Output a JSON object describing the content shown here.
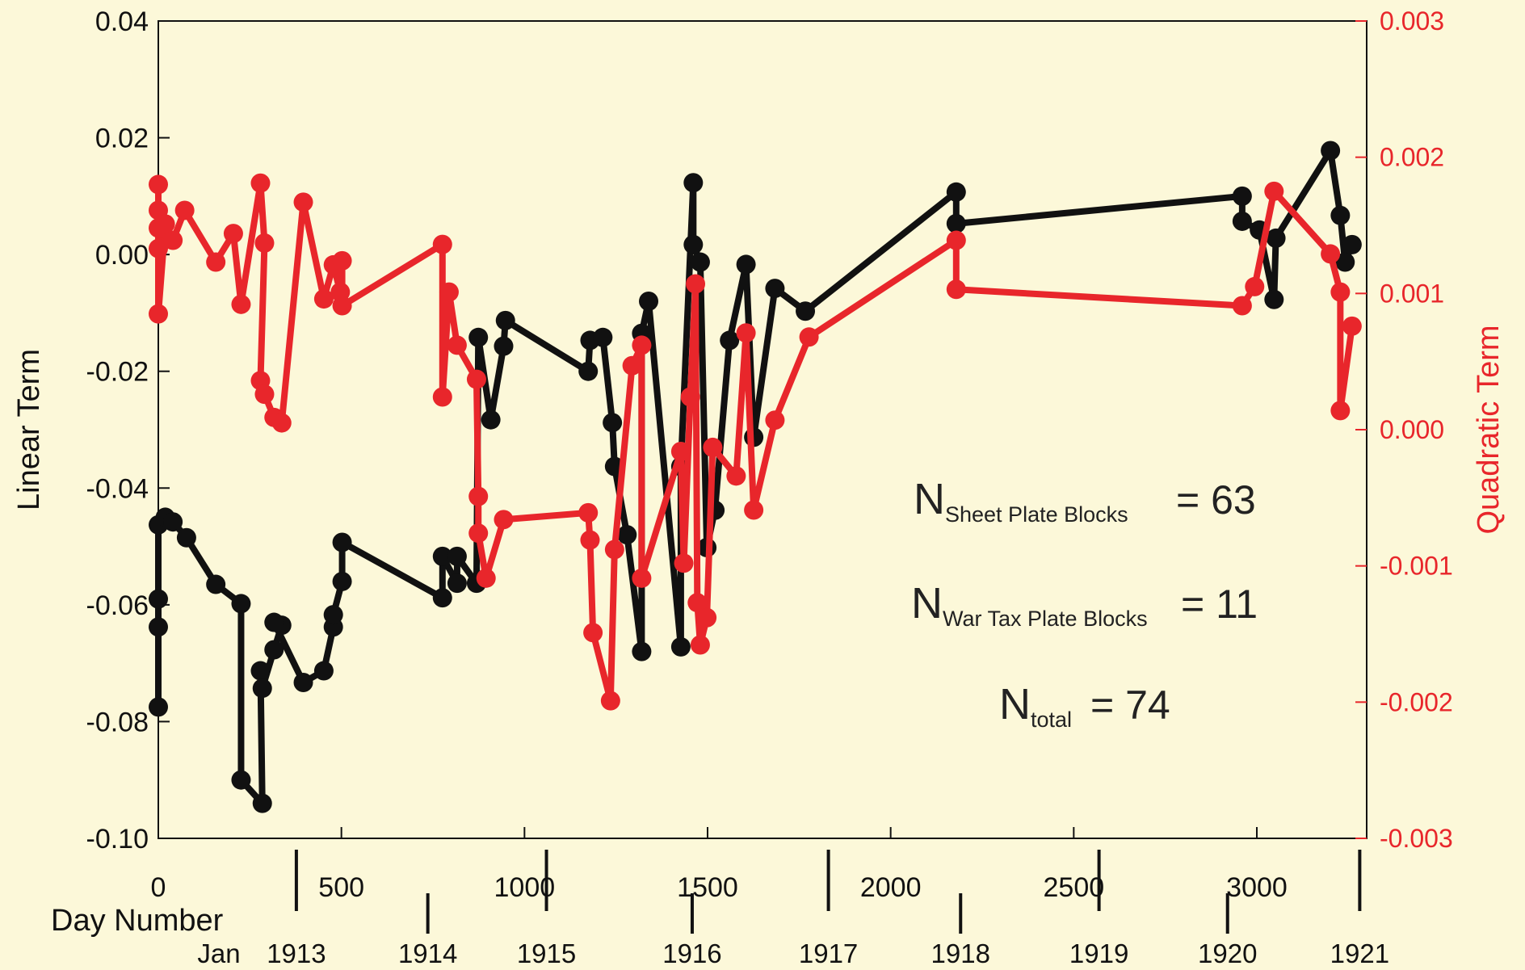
{
  "chart_data": {
    "type": "line",
    "ylabel": "Linear Term",
    "y2label": "Quadratic Term",
    "xlabel": "Day Number",
    "x2label": "Jan",
    "xlim": [
      0,
      3300
    ],
    "xticks": [
      0,
      500,
      1000,
      1500,
      2000,
      2500,
      3000
    ],
    "x2ticks": [
      {
        "value": 377,
        "label": "1913"
      },
      {
        "value": 736,
        "label": "1914"
      },
      {
        "value": 1060,
        "label": "1915"
      },
      {
        "value": 1458,
        "label": "1916"
      },
      {
        "value": 1830,
        "label": "1917"
      },
      {
        "value": 2191,
        "label": "1918"
      },
      {
        "value": 2569,
        "label": "1919"
      },
      {
        "value": 2920,
        "label": "1920"
      },
      {
        "value": 3281,
        "label": "1921"
      }
    ],
    "ylim": [
      -0.1,
      0.04
    ],
    "yticks": [
      0.04,
      0.02,
      {
        "value": 0,
        "label": "0.00"
      },
      -0.02,
      -0.04,
      -0.06,
      -0.08,
      {
        "value": -0.1,
        "label": "-0.10"
      }
    ],
    "y2lim": [
      -0.003,
      0.003
    ],
    "y2ticks": [
      0.003,
      0.002,
      0.001,
      {
        "value": 0,
        "label": "0.000"
      },
      -0.001,
      -0.002,
      -0.003
    ],
    "series": [
      {
        "color": "#111111",
        "axis": "y",
        "x": [
          0,
          0,
          0,
          0,
          19,
          40,
          77,
          157,
          226,
          226,
          284,
          279,
          284,
          316,
          337,
          316,
          396,
          452,
          478,
          478,
          502,
          502,
          776,
          776,
          816,
          816,
          869,
          874,
          908,
          943,
          948,
          1174,
          1179,
          1214,
          1240,
          1246,
          1280,
          1320,
          1320,
          1339,
          1427,
          1427,
          1461,
          1461,
          1480,
          1498,
          1520,
          1560,
          1605,
          1626,
          1684,
          1767,
          2179,
          2179,
          2960,
          2960,
          3007,
          3047,
          3052,
          3201,
          3228,
          3241,
          3260
        ],
        "values": [
          -0.0775,
          -0.0638,
          -0.059,
          -0.0463,
          -0.045,
          -0.0458,
          -0.0485,
          -0.0565,
          -0.0598,
          -0.09,
          -0.094,
          -0.0713,
          -0.0743,
          -0.0677,
          -0.0635,
          -0.063,
          -0.0733,
          -0.0713,
          -0.0638,
          -0.0617,
          -0.056,
          -0.0493,
          -0.0588,
          -0.0517,
          -0.0563,
          -0.0517,
          -0.0563,
          -0.0142,
          -0.0283,
          -0.0157,
          -0.0113,
          -0.02,
          -0.0147,
          -0.0142,
          -0.0288,
          -0.0363,
          -0.048,
          -0.068,
          -0.0135,
          -0.008,
          -0.0672,
          -0.0363,
          0.0123,
          0.0017,
          -0.0013,
          -0.0502,
          -0.0438,
          -0.0147,
          -0.0017,
          -0.0313,
          -0.0058,
          -0.0097,
          0.0107,
          0.0053,
          0.01,
          0.0057,
          0.0042,
          -0.0077,
          0.0028,
          0.0178,
          0.0067,
          -0.0013,
          0.0017
        ]
      },
      {
        "color": "#e8262b",
        "axis": "y2",
        "x": [
          0,
          0,
          0,
          0,
          0,
          19,
          40,
          72,
          157,
          205,
          226,
          279,
          290,
          279,
          290,
          316,
          337,
          396,
          452,
          478,
          497,
          502,
          502,
          776,
          776,
          794,
          816,
          869,
          874,
          874,
          895,
          943,
          1174,
          1179,
          1187,
          1235,
          1246,
          1294,
          1320,
          1320,
          1427,
          1435,
          1453,
          1467,
          1472,
          1480,
          1498,
          1514,
          1578,
          1605,
          1626,
          1684,
          1777,
          2179,
          2179,
          2960,
          2994,
          3047,
          3201,
          3228,
          3228,
          3260
        ],
        "values": [
          0.0018,
          0.00161,
          0.00148,
          0.00133,
          0.00085,
          0.00151,
          0.00139,
          0.00161,
          0.00123,
          0.00144,
          0.00092,
          0.00181,
          0.00137,
          0.00036,
          0.00026,
          9e-05,
          5e-05,
          0.00167,
          0.00096,
          0.00121,
          0.00101,
          0.00124,
          0.00091,
          0.00136,
          0.00024,
          0.00101,
          0.00062,
          0.00037,
          -0.00049,
          -0.00076,
          -0.00109,
          -0.00066,
          -0.00061,
          -0.00081,
          -0.00149,
          -0.00199,
          -0.00088,
          0.00047,
          0.00062,
          -0.00109,
          -0.00016,
          -0.00098,
          0.00024,
          0.00107,
          -0.00127,
          -0.00158,
          -0.00138,
          -0.00013,
          -0.00034,
          0.00071,
          -0.00059,
          7e-05,
          0.00068,
          0.00139,
          0.00103,
          0.00091,
          0.00105,
          0.00175,
          0.00129,
          0.00101,
          0.00014,
          0.00076
        ]
      }
    ],
    "annotations": [
      {
        "main": "N",
        "sub": "Sheet Plate Blocks",
        "rest": "= 63"
      },
      {
        "main": "N",
        "sub": "War Tax Plate Blocks",
        "rest": "= 11"
      },
      {
        "main": "N",
        "sub": "total",
        "rest": "= 74"
      }
    ]
  }
}
